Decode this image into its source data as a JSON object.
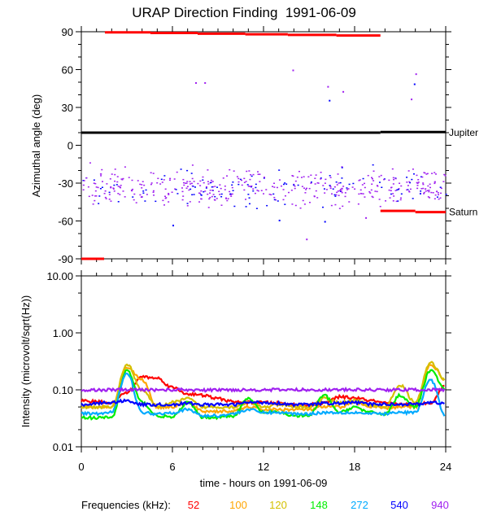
{
  "title": "URAP Direction Finding  1991-06-09",
  "chart_data": [
    {
      "type": "scatter",
      "name": "azimuth",
      "ylabel": "Azimuthal angle (deg)",
      "ylim": [
        -90,
        90
      ],
      "xlim": [
        0,
        24
      ],
      "yticks": [
        "-90",
        "-60",
        "-30",
        "0",
        "30",
        "60",
        "90"
      ],
      "yticks_values": [
        -90,
        -60,
        -30,
        0,
        30,
        60,
        90
      ],
      "annotations": [
        {
          "text": "Jupiter",
          "y": 10
        },
        {
          "text": "Saturn",
          "y": -53
        }
      ],
      "lines": [
        {
          "name": "Jupiter",
          "color": "#000000",
          "segments": [
            [
              0,
              19.7,
              10
            ],
            [
              19.7,
              24,
              10.5
            ]
          ]
        },
        {
          "name": "Saturn",
          "color": "#ff0000",
          "segments": [
            [
              19.7,
              22,
              -52
            ],
            [
              22,
              24,
              -53
            ]
          ]
        },
        {
          "name": "Sun",
          "color": "#ff0000",
          "segments": [
            [
              0,
              1.5,
              -90
            ],
            [
              1.55,
              4.55,
              89.5
            ],
            [
              4.55,
              7.66,
              89
            ],
            [
              7.66,
              10.8,
              88.5
            ],
            [
              10.8,
              13.6,
              88
            ],
            [
              13.6,
              16.8,
              87.5
            ],
            [
              16.8,
              19.7,
              87
            ]
          ]
        }
      ],
      "scatter_cloud": {
        "center_deg": -33,
        "spread_deg": 7,
        "count": 520,
        "colors": [
          "#a020f0",
          "#0000ff"
        ]
      },
      "outliers": [
        {
          "x": 7.5,
          "y": 50,
          "color": "#a020f0"
        },
        {
          "x": 8.1,
          "y": 50,
          "color": "#a020f0"
        },
        {
          "x": 13.9,
          "y": 60,
          "color": "#a020f0"
        },
        {
          "x": 16.2,
          "y": 47,
          "color": "#a020f0"
        },
        {
          "x": 16.3,
          "y": 36,
          "color": "#0000ff"
        },
        {
          "x": 17.2,
          "y": 43,
          "color": "#a020f0"
        },
        {
          "x": 21.7,
          "y": 37,
          "color": "#a020f0"
        },
        {
          "x": 21.9,
          "y": 49,
          "color": "#0000ff"
        },
        {
          "x": 22.0,
          "y": 57,
          "color": "#a020f0"
        },
        {
          "x": 6.0,
          "y": -63,
          "color": "#0000ff"
        },
        {
          "x": 14.8,
          "y": -74,
          "color": "#a020f0"
        },
        {
          "x": 13.0,
          "y": -59,
          "color": "#0000ff"
        },
        {
          "x": 16.0,
          "y": -60,
          "color": "#0000ff"
        },
        {
          "x": 18.7,
          "y": -57,
          "color": "#a020f0"
        }
      ]
    },
    {
      "type": "line",
      "name": "intensity",
      "ylabel": "Intensity (microvolt/sqrt(Hz))",
      "xlabel": "time - hours on 1991-06-09",
      "yscale": "log",
      "ylim": [
        0.01,
        10
      ],
      "yticks": [
        "0.01",
        "0.10",
        "1.00",
        "10.00"
      ],
      "yticks_values": [
        0.01,
        0.1,
        1,
        10
      ],
      "xlim": [
        0,
        24
      ],
      "xticks": [
        "0",
        "6",
        "12",
        "18",
        "24"
      ],
      "xticks_values": [
        0,
        6,
        12,
        18,
        24
      ],
      "x": [
        0,
        1,
        2,
        3,
        4,
        5,
        6,
        7,
        8,
        9,
        10,
        11,
        12,
        13,
        14,
        15,
        16,
        17,
        18,
        19,
        20,
        21,
        22,
        23,
        24
      ],
      "legend_title": "Frequencies (kHz):",
      "legend_placement": "bottom",
      "series": [
        {
          "name": "52",
          "color": "#ff0000",
          "values": [
            0.065,
            0.062,
            0.06,
            0.09,
            0.17,
            0.16,
            0.11,
            0.085,
            0.08,
            0.07,
            0.062,
            0.06,
            0.06,
            0.058,
            0.055,
            0.055,
            0.058,
            0.075,
            0.072,
            0.065,
            0.058,
            0.056,
            0.055,
            0.06,
            0.12
          ]
        },
        {
          "name": "100",
          "color": "#ffa500",
          "values": [
            0.05,
            0.05,
            0.05,
            0.25,
            0.15,
            0.05,
            0.05,
            0.06,
            0.042,
            0.042,
            0.042,
            0.05,
            0.045,
            0.045,
            0.045,
            0.045,
            0.05,
            0.05,
            0.06,
            0.05,
            0.048,
            0.05,
            0.05,
            0.28,
            0.15
          ]
        },
        {
          "name": "120",
          "color": "#d4c000",
          "values": [
            0.05,
            0.05,
            0.05,
            0.28,
            0.1,
            0.05,
            0.06,
            0.07,
            0.05,
            0.05,
            0.05,
            0.06,
            0.05,
            0.055,
            0.05,
            0.05,
            0.07,
            0.06,
            0.065,
            0.055,
            0.05,
            0.12,
            0.06,
            0.3,
            0.15
          ]
        },
        {
          "name": "148",
          "color": "#00ee00",
          "values": [
            0.033,
            0.032,
            0.033,
            0.22,
            0.06,
            0.035,
            0.033,
            0.06,
            0.033,
            0.033,
            0.035,
            0.07,
            0.04,
            0.04,
            0.035,
            0.035,
            0.08,
            0.04,
            0.05,
            0.04,
            0.038,
            0.08,
            0.05,
            0.22,
            0.1
          ]
        },
        {
          "name": "272",
          "color": "#00aaff",
          "values": [
            0.038,
            0.038,
            0.04,
            0.2,
            0.04,
            0.038,
            0.04,
            0.045,
            0.035,
            0.035,
            0.038,
            0.045,
            0.04,
            0.04,
            0.038,
            0.038,
            0.04,
            0.04,
            0.04,
            0.038,
            0.038,
            0.04,
            0.04,
            0.15,
            0.035
          ]
        },
        {
          "name": "540",
          "color": "#0000ff",
          "values": [
            0.055,
            0.058,
            0.06,
            0.065,
            0.055,
            0.055,
            0.055,
            0.058,
            0.055,
            0.055,
            0.055,
            0.06,
            0.06,
            0.058,
            0.055,
            0.055,
            0.058,
            0.058,
            0.06,
            0.056,
            0.056,
            0.056,
            0.056,
            0.06,
            0.058
          ]
        },
        {
          "name": "940",
          "color": "#a020f0",
          "values": [
            0.095,
            0.1,
            0.1,
            0.1,
            0.1,
            0.1,
            0.1,
            0.1,
            0.098,
            0.1,
            0.1,
            0.1,
            0.1,
            0.1,
            0.1,
            0.1,
            0.1,
            0.1,
            0.1,
            0.1,
            0.1,
            0.1,
            0.1,
            0.1,
            0.1
          ]
        }
      ]
    }
  ]
}
